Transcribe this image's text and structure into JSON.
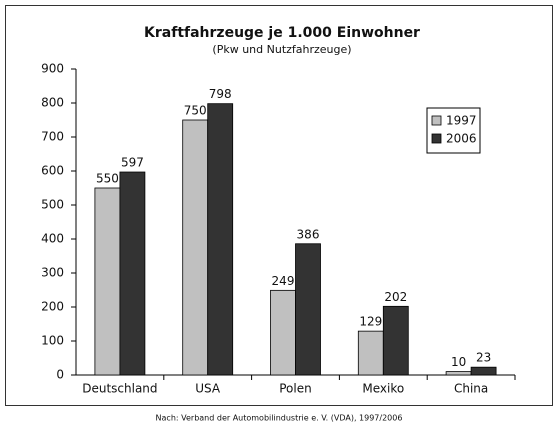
{
  "chart_data": {
    "type": "bar",
    "title": "Kraftfahrzeuge je 1.000 Einwohner",
    "subtitle": "(Pkw und Nutzfahrzeuge)",
    "source": "Nach: Verband der Automobilindustrie e. V. (VDA), 1997/2006",
    "categories": [
      "Deutschland",
      "USA",
      "Polen",
      "Mexiko",
      "China"
    ],
    "series": [
      {
        "name": "1997",
        "color": "#c0c0c0",
        "values": [
          550,
          750,
          249,
          129,
          10
        ]
      },
      {
        "name": "2006",
        "color": "#333333",
        "values": [
          597,
          798,
          386,
          202,
          23
        ]
      }
    ],
    "ylim": [
      0,
      900
    ],
    "yticks": [
      0,
      100,
      200,
      300,
      400,
      500,
      600,
      700,
      800,
      900
    ],
    "legend": "upper right"
  }
}
